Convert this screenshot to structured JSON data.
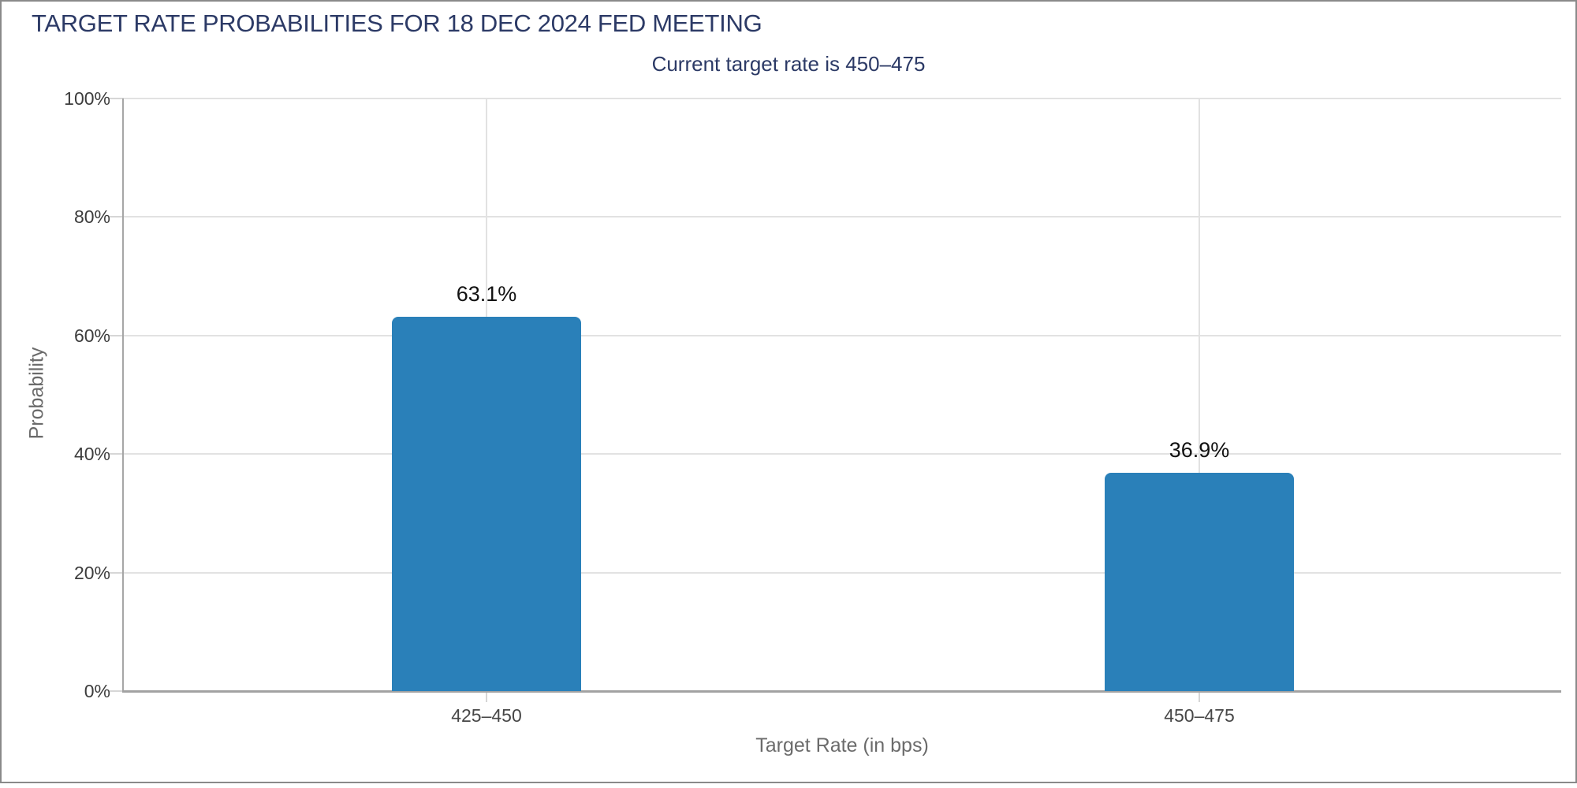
{
  "window": {
    "title": "TARGET RATE PROBABILITIES FOR 18 DEC 2024 FED MEETING"
  },
  "header": {
    "title": "TARGET RATE PROBABILITIES FOR 18 DEC 2024 FED MEETING",
    "subtitle": "Current target rate is 450–475"
  },
  "chart_data": {
    "type": "bar",
    "title": "TARGET RATE PROBABILITIES FOR 18 DEC 2024 FED MEETING",
    "subtitle": "Current target rate is 450–475",
    "categories": [
      "425–450",
      "450–475"
    ],
    "values": [
      63.1,
      36.9
    ],
    "value_labels": [
      "63.1%",
      "36.9%"
    ],
    "xlabel": "Target Rate (in bps)",
    "ylabel": "Probability",
    "ylim": [
      0,
      100
    ],
    "ytick_step": 20,
    "ytick_labels": [
      "0%",
      "20%",
      "40%",
      "60%",
      "80%",
      "100%"
    ],
    "grid": true,
    "legend": "none",
    "bar_color": "#2A80B9"
  },
  "colors": {
    "bar": "#2A80B9",
    "title_navy": "#2C3A66",
    "grid": "#E2E2E2",
    "axis": "#A6A6A6",
    "frame": "#8A8A8A"
  }
}
